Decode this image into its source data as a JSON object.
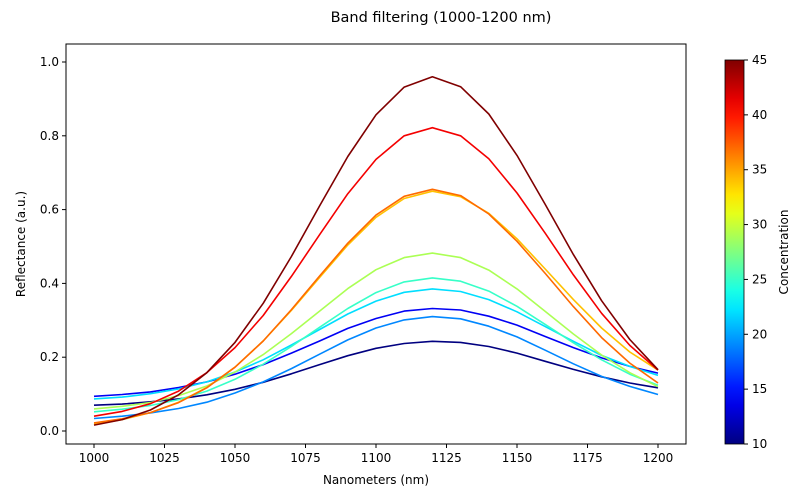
{
  "chart_data": {
    "type": "line",
    "title": "Band filtering (1000-1200 nm)",
    "xlabel": "Nanometers (nm)",
    "ylabel": "Reflectance (a.u.)",
    "xlim": [
      990,
      1210
    ],
    "ylim": [
      -0.03,
      1.0
    ],
    "xticks": [
      1000,
      1025,
      1050,
      1075,
      1100,
      1125,
      1150,
      1175,
      1200
    ],
    "xtick_labels": [
      "1000",
      "1025",
      "1050",
      "1075",
      "1100",
      "1125",
      "1150",
      "1175",
      "1200"
    ],
    "yticks": [
      0.0,
      0.2,
      0.4,
      0.6,
      0.8,
      1.0
    ],
    "ytick_labels": [
      "0.0",
      "0.2",
      "0.4",
      "0.6",
      "0.8",
      "1.0"
    ],
    "grid": false,
    "legend": "none",
    "x": [
      1000,
      1010,
      1020,
      1030,
      1040,
      1050,
      1060,
      1070,
      1080,
      1090,
      1100,
      1110,
      1120,
      1130,
      1140,
      1150,
      1160,
      1170,
      1180,
      1190,
      1200
    ],
    "colorbar": {
      "label": "Concentration",
      "colormap": "jet",
      "range": [
        10,
        45
      ],
      "ticks": [
        10,
        15,
        20,
        25,
        30,
        35,
        40,
        45
      ],
      "tick_labels": [
        "10",
        "15",
        "20",
        "25",
        "30",
        "35",
        "40",
        "45"
      ]
    },
    "series": [
      {
        "name": "10",
        "concentration": 10,
        "values": [
          0.07,
          0.073,
          0.079,
          0.087,
          0.098,
          0.113,
          0.132,
          0.155,
          0.18,
          0.204,
          0.224,
          0.237,
          0.243,
          0.24,
          0.229,
          0.211,
          0.189,
          0.167,
          0.147,
          0.13,
          0.117
        ]
      },
      {
        "name": "14",
        "concentration": 14,
        "values": [
          0.094,
          0.099,
          0.106,
          0.118,
          0.133,
          0.154,
          0.18,
          0.211,
          0.244,
          0.278,
          0.305,
          0.325,
          0.332,
          0.328,
          0.311,
          0.287,
          0.256,
          0.226,
          0.198,
          0.175,
          0.157
        ]
      },
      {
        "name": "19",
        "concentration": 19,
        "values": [
          0.034,
          0.04,
          0.049,
          0.061,
          0.078,
          0.103,
          0.133,
          0.169,
          0.208,
          0.247,
          0.279,
          0.301,
          0.31,
          0.304,
          0.284,
          0.255,
          0.219,
          0.182,
          0.148,
          0.121,
          0.099
        ]
      },
      {
        "name": "22",
        "concentration": 22,
        "values": [
          0.087,
          0.092,
          0.101,
          0.114,
          0.133,
          0.16,
          0.193,
          0.233,
          0.275,
          0.317,
          0.352,
          0.376,
          0.385,
          0.378,
          0.356,
          0.323,
          0.283,
          0.243,
          0.205,
          0.175,
          0.151
        ]
      },
      {
        "name": "25",
        "concentration": 25,
        "values": [
          0.052,
          0.059,
          0.069,
          0.085,
          0.108,
          0.14,
          0.181,
          0.229,
          0.281,
          0.332,
          0.375,
          0.404,
          0.415,
          0.406,
          0.379,
          0.338,
          0.289,
          0.239,
          0.193,
          0.154,
          0.124
        ]
      },
      {
        "name": "29",
        "concentration": 29,
        "values": [
          0.06,
          0.067,
          0.077,
          0.096,
          0.122,
          0.16,
          0.207,
          0.264,
          0.325,
          0.386,
          0.437,
          0.47,
          0.482,
          0.47,
          0.436,
          0.385,
          0.324,
          0.263,
          0.206,
          0.158,
          0.12
        ]
      },
      {
        "name": "34",
        "concentration": 34,
        "values": [
          0.018,
          0.031,
          0.05,
          0.078,
          0.118,
          0.173,
          0.244,
          0.327,
          0.416,
          0.504,
          0.579,
          0.63,
          0.65,
          0.635,
          0.59,
          0.521,
          0.439,
          0.356,
          0.279,
          0.214,
          0.165
        ]
      },
      {
        "name": "37",
        "concentration": 37,
        "values": [
          0.022,
          0.033,
          0.05,
          0.077,
          0.117,
          0.173,
          0.244,
          0.329,
          0.42,
          0.509,
          0.585,
          0.636,
          0.655,
          0.638,
          0.588,
          0.514,
          0.427,
          0.337,
          0.253,
          0.184,
          0.13
        ]
      },
      {
        "name": "41",
        "concentration": 41,
        "values": [
          0.04,
          0.053,
          0.074,
          0.108,
          0.158,
          0.226,
          0.313,
          0.419,
          0.532,
          0.643,
          0.736,
          0.8,
          0.822,
          0.8,
          0.738,
          0.645,
          0.536,
          0.423,
          0.319,
          0.232,
          0.165
        ]
      },
      {
        "name": "45",
        "concentration": 45,
        "values": [
          0.016,
          0.031,
          0.057,
          0.098,
          0.158,
          0.24,
          0.346,
          0.473,
          0.61,
          0.744,
          0.857,
          0.932,
          0.96,
          0.933,
          0.859,
          0.747,
          0.614,
          0.478,
          0.353,
          0.248,
          0.166
        ]
      }
    ]
  }
}
